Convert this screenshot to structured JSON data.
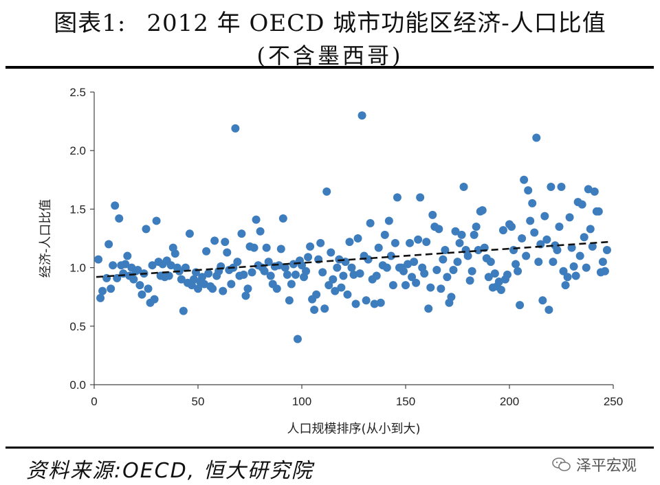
{
  "header": {
    "title_prefix": "图表1:",
    "title_main": "2012 年 OECD 城市功能区经济-人口比值",
    "subtitle": "(不含墨西哥)"
  },
  "footer": {
    "source": "资料来源:OECD, 恒大研究院",
    "watermark_text": "泽平宏观",
    "watermark_icon": "wechat-icon"
  },
  "colors": {
    "points": "#3d7dbd",
    "trend": "#111111",
    "axis": "#444444"
  },
  "chart_data": {
    "type": "scatter",
    "title": "2012 年 OECD 城市功能区经济-人口比值",
    "subtitle": "(不含墨西哥)",
    "xlabel": "人口规模排序(从小到大)",
    "ylabel": "经济-人口比值",
    "xlim": [
      0,
      250
    ],
    "ylim": [
      0,
      2.5
    ],
    "xticks": [
      0,
      50,
      100,
      150,
      200,
      250
    ],
    "yticks": [
      0.0,
      0.5,
      1.0,
      1.5,
      2.0,
      2.5
    ],
    "xtick_labels": [
      "0",
      "50",
      "100",
      "150",
      "200",
      "250"
    ],
    "ytick_labels": [
      "0.0",
      "0.5",
      "1.0",
      "1.5",
      "2.0",
      "2.5"
    ],
    "grid": false,
    "legend": "none",
    "trendline": {
      "style": "dashed",
      "x": [
        0,
        250
      ],
      "y": [
        0.92,
        1.22
      ]
    },
    "series": [
      {
        "values": [
          [
            2,
            1.07
          ],
          [
            3,
            0.74
          ],
          [
            4,
            0.8
          ],
          [
            6,
            0.91
          ],
          [
            7,
            1.2
          ],
          [
            8,
            0.82
          ],
          [
            9,
            1.02
          ],
          [
            10,
            1.53
          ],
          [
            11,
            0.91
          ],
          [
            12,
            1.42
          ],
          [
            13,
            1.02
          ],
          [
            14,
            0.95
          ],
          [
            15,
            1.03
          ],
          [
            16,
            1.1
          ],
          [
            17,
            0.93
          ],
          [
            18,
            1.0
          ],
          [
            19,
            0.9
          ],
          [
            20,
            0.97
          ],
          [
            21,
            0.98
          ],
          [
            22,
            0.85
          ],
          [
            23,
            0.77
          ],
          [
            24,
            0.95
          ],
          [
            25,
            1.33
          ],
          [
            26,
            0.82
          ],
          [
            27,
            0.7
          ],
          [
            28,
            1.02
          ],
          [
            29,
            0.73
          ],
          [
            30,
            1.4
          ],
          [
            31,
            1.05
          ],
          [
            32,
            0.93
          ],
          [
            33,
            1.03
          ],
          [
            34,
            0.92
          ],
          [
            35,
            1.06
          ],
          [
            36,
            0.93
          ],
          [
            37,
            1.02
          ],
          [
            38,
            1.17
          ],
          [
            39,
            1.12
          ],
          [
            40,
            1.0
          ],
          [
            41,
            0.97
          ],
          [
            42,
            0.9
          ],
          [
            43,
            0.63
          ],
          [
            44,
            1.0
          ],
          [
            45,
            0.87
          ],
          [
            46,
            1.29
          ],
          [
            47,
            0.85
          ],
          [
            48,
            0.9
          ],
          [
            49,
            0.96
          ],
          [
            50,
            0.82
          ],
          [
            51,
            0.88
          ],
          [
            52,
            0.92
          ],
          [
            53,
            0.86
          ],
          [
            54,
            1.14
          ],
          [
            55,
            0.95
          ],
          [
            56,
            0.84
          ],
          [
            57,
            0.82
          ],
          [
            58,
            1.23
          ],
          [
            59,
            0.93
          ],
          [
            60,
            0.97
          ],
          [
            61,
            1.01
          ],
          [
            62,
            0.8
          ],
          [
            63,
            1.22
          ],
          [
            64,
            1.13
          ],
          [
            65,
            0.98
          ],
          [
            66,
            0.86
          ],
          [
            67,
            1.0
          ],
          [
            68,
            2.19
          ],
          [
            69,
            1.05
          ],
          [
            70,
            0.93
          ],
          [
            71,
            1.29
          ],
          [
            72,
            0.94
          ],
          [
            73,
            0.76
          ],
          [
            74,
            0.82
          ],
          [
            75,
            1.18
          ],
          [
            76,
            0.96
          ],
          [
            77,
            1.17
          ],
          [
            78,
            1.41
          ],
          [
            79,
            1.02
          ],
          [
            80,
            1.31
          ],
          [
            81,
            1.0
          ],
          [
            82,
            0.97
          ],
          [
            83,
            1.17
          ],
          [
            84,
            1.05
          ],
          [
            85,
            0.93
          ],
          [
            86,
            0.86
          ],
          [
            87,
            1.01
          ],
          [
            88,
            0.82
          ],
          [
            89,
            1.02
          ],
          [
            90,
            1.16
          ],
          [
            91,
            1.42
          ],
          [
            92,
            1.0
          ],
          [
            93,
            0.94
          ],
          [
            94,
            0.72
          ],
          [
            95,
            0.86
          ],
          [
            96,
            1.03
          ],
          [
            97,
            0.94
          ],
          [
            98,
            0.39
          ],
          [
            99,
            1.06
          ],
          [
            100,
            1.02
          ],
          [
            101,
            0.92
          ],
          [
            102,
            0.97
          ],
          [
            103,
            1.09
          ],
          [
            104,
            1.18
          ],
          [
            105,
            0.73
          ],
          [
            106,
            0.64
          ],
          [
            107,
            0.77
          ],
          [
            108,
            1.07
          ],
          [
            109,
            1.21
          ],
          [
            110,
            0.96
          ],
          [
            111,
            0.65
          ],
          [
            112,
            1.65
          ],
          [
            113,
            0.85
          ],
          [
            114,
            1.13
          ],
          [
            115,
            0.9
          ],
          [
            116,
            0.8
          ],
          [
            117,
            1.0
          ],
          [
            118,
            1.07
          ],
          [
            119,
            0.83
          ],
          [
            120,
            0.93
          ],
          [
            121,
            1.05
          ],
          [
            122,
            0.77
          ],
          [
            123,
            1.22
          ],
          [
            124,
            1.0
          ],
          [
            125,
            0.94
          ],
          [
            126,
            0.69
          ],
          [
            127,
            1.25
          ],
          [
            128,
            0.95
          ],
          [
            129,
            2.3
          ],
          [
            130,
            1.1
          ],
          [
            131,
            0.72
          ],
          [
            132,
            1.07
          ],
          [
            133,
            1.38
          ],
          [
            134,
            0.9
          ],
          [
            135,
            0.69
          ],
          [
            136,
            0.93
          ],
          [
            137,
            1.17
          ],
          [
            138,
            0.7
          ],
          [
            139,
            1.02
          ],
          [
            140,
            1.28
          ],
          [
            141,
            1.0
          ],
          [
            142,
            1.4
          ],
          [
            143,
            1.1
          ],
          [
            144,
            0.85
          ],
          [
            145,
            1.21
          ],
          [
            146,
            1.6
          ],
          [
            147,
            1.0
          ],
          [
            148,
            1.0
          ],
          [
            149,
            0.97
          ],
          [
            150,
            0.85
          ],
          [
            151,
            1.03
          ],
          [
            152,
            1.21
          ],
          [
            153,
            0.92
          ],
          [
            154,
            1.05
          ],
          [
            155,
            0.87
          ],
          [
            156,
            1.24
          ],
          [
            157,
            1.6
          ],
          [
            158,
            1.0
          ],
          [
            159,
            0.95
          ],
          [
            160,
            1.22
          ],
          [
            161,
            0.65
          ],
          [
            162,
            0.83
          ],
          [
            163,
            1.45
          ],
          [
            164,
            1.35
          ],
          [
            165,
            0.98
          ],
          [
            166,
            1.33
          ],
          [
            167,
            0.82
          ],
          [
            168,
            1.07
          ],
          [
            169,
            1.15
          ],
          [
            170,
            0.92
          ],
          [
            171,
            0.7
          ],
          [
            172,
            0.75
          ],
          [
            173,
            0.98
          ],
          [
            174,
            1.31
          ],
          [
            175,
            1.05
          ],
          [
            176,
            1.21
          ],
          [
            177,
            1.28
          ],
          [
            178,
            1.69
          ],
          [
            179,
            1.15
          ],
          [
            180,
            1.1
          ],
          [
            181,
            0.89
          ],
          [
            182,
            0.97
          ],
          [
            183,
            1.28
          ],
          [
            184,
            1.35
          ],
          [
            185,
            1.15
          ],
          [
            186,
            1.48
          ],
          [
            187,
            1.49
          ],
          [
            188,
            1.17
          ],
          [
            189,
            1.08
          ],
          [
            190,
            0.92
          ],
          [
            191,
            1.05
          ],
          [
            192,
            0.83
          ],
          [
            193,
            0.95
          ],
          [
            194,
            0.84
          ],
          [
            195,
            0.88
          ],
          [
            196,
            0.81
          ],
          [
            197,
            1.32
          ],
          [
            198,
            0.9
          ],
          [
            199,
            0.94
          ],
          [
            200,
            1.37
          ],
          [
            201,
            1.35
          ],
          [
            202,
            1.15
          ],
          [
            203,
            1.03
          ],
          [
            204,
            0.97
          ],
          [
            205,
            0.68
          ],
          [
            206,
            1.25
          ],
          [
            207,
            1.75
          ],
          [
            208,
            1.1
          ],
          [
            209,
            1.66
          ],
          [
            210,
            1.4
          ],
          [
            211,
            1.55
          ],
          [
            212,
            1.3
          ],
          [
            213,
            2.11
          ],
          [
            214,
            1.05
          ],
          [
            215,
            1.2
          ],
          [
            216,
            0.72
          ],
          [
            217,
            1.44
          ],
          [
            218,
            1.24
          ],
          [
            219,
            0.64
          ],
          [
            220,
            1.69
          ],
          [
            221,
            1.05
          ],
          [
            222,
            1.19
          ],
          [
            223,
            1.15
          ],
          [
            224,
            1.35
          ],
          [
            225,
            1.69
          ],
          [
            226,
            0.97
          ],
          [
            227,
            0.85
          ],
          [
            228,
            0.92
          ],
          [
            229,
            1.43
          ],
          [
            230,
            1.17
          ],
          [
            231,
            1.01
          ],
          [
            232,
            0.93
          ],
          [
            233,
            1.56
          ],
          [
            234,
            1.1
          ],
          [
            235,
            1.54
          ],
          [
            236,
            1.26
          ],
          [
            237,
            1.0
          ],
          [
            238,
            1.67
          ],
          [
            239,
            1.33
          ],
          [
            240,
            1.18
          ],
          [
            241,
            1.65
          ],
          [
            242,
            1.48
          ],
          [
            243,
            1.48
          ],
          [
            244,
            0.96
          ],
          [
            245,
            1.05
          ],
          [
            246,
            0.97
          ],
          [
            247,
            1.15
          ]
        ]
      }
    ]
  }
}
